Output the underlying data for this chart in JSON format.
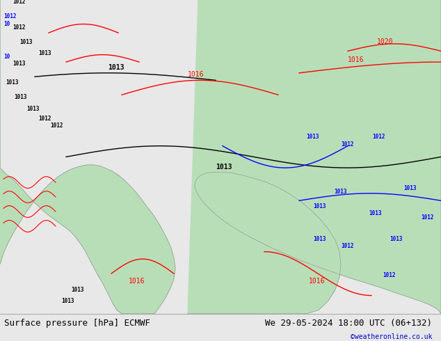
{
  "title_left": "Surface pressure [hPa] ECMWF",
  "title_right": "We 29-05-2024 18:00 UTC (06+132)",
  "credit": "©weatheronline.co.uk",
  "bg_color": "#e8e8e8",
  "map_bg_color": "#d8d8d8",
  "land_color": "#b8e8b8",
  "sea_color": "#e0e0e0",
  "contour_color_main": "#000000",
  "contour_color_high": "#ff0000",
  "contour_color_low": "#0000ff",
  "bottom_bar_color": "#f0f0f0",
  "bottom_text_color": "#000000",
  "credit_color": "#0000cc",
  "figsize": [
    6.34,
    4.9
  ],
  "dpi": 100
}
